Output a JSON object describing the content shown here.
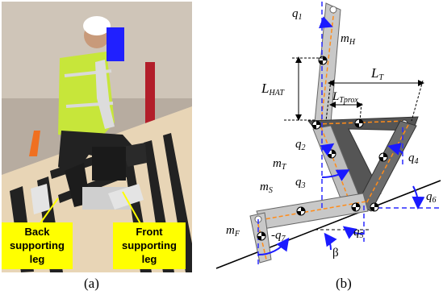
{
  "panel_a": {
    "caption": "(a)",
    "labels": {
      "back_leg_line1": "Back",
      "back_leg_line2": "supporting",
      "back_leg_line3": "leg",
      "front_leg_line1": "Front",
      "front_leg_line2": "supporting",
      "front_leg_line3": "leg"
    }
  },
  "panel_b": {
    "caption": "(b)",
    "labels": {
      "q1": "q",
      "q1_sub": "1",
      "q2": "q",
      "q2_sub": "2",
      "q3": "q",
      "q3_sub": "3",
      "q4": "q",
      "q4_sub": "4",
      "q5": "q",
      "q5_sub": "5",
      "q6": "q",
      "q6_sub": "6",
      "q7": "-q",
      "q7_sub": "7",
      "mH": "m",
      "mH_sub": "H",
      "mT": "m",
      "mT_sub": "T",
      "mS": "m",
      "mS_sub": "S",
      "mF": "m",
      "mF_sub": "F",
      "LHAT": "L",
      "LHAT_sub": "HAT",
      "LT": "L",
      "LT_sub": "T",
      "LTprox": "L",
      "LTprox_sub": "Tprox",
      "beta": "β"
    }
  },
  "colors": {
    "segment_light": "#c8c8c8",
    "segment_dark": "#7a7a7a",
    "segment_darkest": "#555555",
    "axis_dash": "#ff8c1a",
    "arrow_blue": "#1a1aff",
    "vertical_blue": "#2a2aff",
    "callout_yellow": "#ffff00"
  }
}
